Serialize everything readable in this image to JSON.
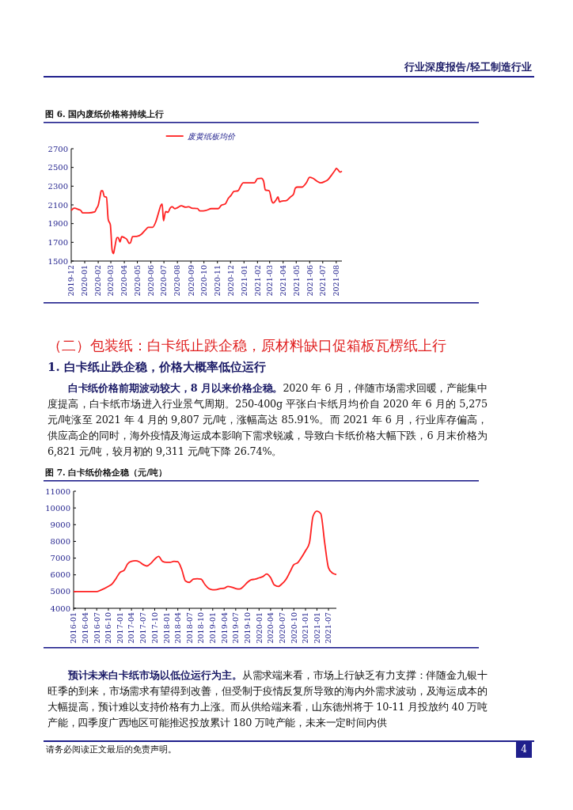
{
  "chart_data": [
    {
      "type": "line",
      "title": "图 6. 国内废纸价格将持续上行",
      "annotations": [
        "行业深度报告/轻工制造行业",
        "（二）包装纸：白卡纸止跌企稳，原材料缺口促箱板瓦楞纸上行",
        "1. 白卡纸止跌企稳，价格大概率低位运行",
        "白卡纸价格前期波动较大，8 月以来价格企稳。",
        "2020 年 6 月，伴随市场需求回暖，产能集中度提高，白卡纸市场进入行业景气周期。250-400g 平张白卡纸月均价自 2020 年 6 月的 5,275 元/吨涨至 2021 年 4 月的 9,807 元/吨，涨幅高达 85.91%。而 2021 年 6 月，行业库存偏高，供应高企的同时，海外疫情及海运成本影响下需求锐减，导致白卡纸价格大幅下跌，6 月末价格为 6,821 元/吨，较月初的 9,311 元/吨下降 26.74%。"
      ],
      "x": [
        "2019-12-01",
        "2019-12-08",
        "2019-12-18",
        "2019-12-23",
        "2019-12-27",
        "2020-01-10",
        "2020-01-24",
        "2020-01-28",
        "2020-02-01",
        "2020-02-05",
        "2020-02-08",
        "2020-02-11",
        "2020-02-15",
        "2020-02-20",
        "2020-02-24",
        "2020-02-29",
        "2020-03-01",
        "2020-03-04",
        "2020-03-07",
        "2020-03-10",
        "2020-03-15",
        "2020-03-18",
        "2020-03-22",
        "2020-03-26",
        "2020-04-01",
        "2020-04-07",
        "2020-04-12",
        "2020-04-15",
        "2020-04-20",
        "2020-05-01",
        "2020-05-10",
        "2020-05-20",
        "2020-05-26",
        "2020-06-05",
        "2020-06-12",
        "2020-06-18",
        "2020-06-24",
        "2020-06-27",
        "2020-06-30",
        "2020-07-01",
        "2020-07-05",
        "2020-07-10",
        "2020-07-16",
        "2020-07-20",
        "2020-07-26",
        "2020-08-01",
        "2020-08-10",
        "2020-08-20",
        "2020-08-27",
        "2020-09-03",
        "2020-09-16",
        "2020-09-22",
        "2020-10-05",
        "2020-10-18",
        "2020-11-03",
        "2020-11-10",
        "2020-11-19",
        "2020-11-26",
        "2020-12-02",
        "2020-12-09",
        "2020-12-18",
        "2020-12-25",
        "2020-12-30",
        "2021-01-12",
        "2021-01-25",
        "2021-02-01",
        "2021-02-10",
        "2021-02-15",
        "2021-02-19",
        "2021-02-28",
        "2021-03-06",
        "2021-03-09",
        "2021-03-16",
        "2021-03-20",
        "2021-03-24",
        "2021-03-28",
        "2021-04-08",
        "2021-04-18",
        "2021-04-25",
        "2021-04-29",
        "2021-05-04",
        "2021-05-14",
        "2021-05-24",
        "2021-06-01",
        "2021-06-08",
        "2021-06-19",
        "2021-06-26",
        "2021-07-06",
        "2021-07-13",
        "2021-07-23",
        "2021-07-30",
        "2021-08-01",
        "2021-08-05",
        "2021-08-10",
        "2021-08-14"
      ],
      "series": [
        {
          "name": "废黄纸板均价",
          "color": "#ff2020",
          "values": [
            2040,
            2065,
            2050,
            2040,
            2015,
            2015,
            2025,
            2060,
            2095,
            2185,
            2250,
            2250,
            2190,
            2180,
            1945,
            1885,
            1825,
            1615,
            1580,
            1645,
            1750,
            1750,
            1705,
            1760,
            1750,
            1730,
            1690,
            1695,
            1760,
            1765,
            1785,
            1835,
            1860,
            1860,
            1915,
            2005,
            2095,
            2110,
            1930,
            1945,
            2030,
            2020,
            2070,
            2080,
            2060,
            2070,
            2090,
            2075,
            2080,
            2065,
            2060,
            2035,
            2040,
            2060,
            2060,
            2095,
            2110,
            2170,
            2200,
            2245,
            2250,
            2305,
            2335,
            2335,
            2335,
            2380,
            2385,
            2355,
            2260,
            2250,
            2140,
            2120,
            2155,
            2185,
            2130,
            2140,
            2145,
            2185,
            2215,
            2280,
            2290,
            2290,
            2335,
            2395,
            2385,
            2350,
            2335,
            2350,
            2370,
            2430,
            2475,
            2490,
            2475,
            2450,
            2460
          ]
        }
      ],
      "xlim": [
        "2019-12-01",
        "2021-08-14"
      ],
      "xticks": [
        "2019-12",
        "2020-01",
        "2020-02",
        "2020-03",
        "2020-04",
        "2020-05",
        "2020-06",
        "2020-07",
        "2020-08",
        "2020-09",
        "2020-10",
        "2020-11",
        "2020-12",
        "2021-01",
        "2021-02",
        "2021-03",
        "2021-04",
        "2021-05",
        "2021-06",
        "2021-07",
        "2021-08"
      ],
      "ylim": [
        1500,
        2700
      ],
      "yticks": [
        1500,
        1700,
        1900,
        2100,
        2300,
        2500,
        2700
      ],
      "legend": "top",
      "grid": false
    },
    {
      "type": "line",
      "title": "图 7. 白卡纸价格企稳（元/吨）",
      "annotations": [
        "预计未来白卡纸市场以低位运行为主。",
        "从需求端来看，市场上行缺乏有力支撑：伴随金九银十旺季的到来，市场需求有望得到改善，但受制于疫情反复所导致的海内外需求波动，及海运成本的大幅提高，预计难以支持价格有力上涨。而从供给端来看，山东德州将于 10-11 月投放约 40 万吨产能，四季度广西地区可能推迟投放累计 180 万吨产能，未来一定时间内供",
        "请务必阅读正文最后的免责声明。",
        "4"
      ],
      "x": [
        "2016-01",
        "2016-07",
        "2016-08",
        "2016-10",
        "2016-11",
        "2016-12",
        "2017-01",
        "2017-02",
        "2017-03",
        "2017-04",
        "2017-05",
        "2017-06",
        "2017-07",
        "2017-08",
        "2017-09",
        "2017-10",
        "2017-11",
        "2017-12",
        "2018-01",
        "2018-02",
        "2018-03",
        "2018-04",
        "2018-05",
        "2018-06",
        "2018-07",
        "2018-08",
        "2018-09",
        "2018-10",
        "2018-11",
        "2018-12",
        "2019-01",
        "2019-02",
        "2019-03",
        "2019-04",
        "2019-05",
        "2019-06",
        "2019-07",
        "2019-08",
        "2019-09",
        "2019-10",
        "2019-11",
        "2019-12",
        "2020-01",
        "2020-02",
        "2020-03",
        "2020-04",
        "2020-05",
        "2020-06",
        "2020-07",
        "2020-08",
        "2020-09",
        "2020-10",
        "2020-11",
        "2020-12",
        "2021-01",
        "2021-02",
        "2021-03",
        "2021-04",
        "2021-05",
        "2021-06",
        "2021-07",
        "2021-08",
        "2021-09"
      ],
      "series": [
        {
          "color": "#ff2020",
          "values": [
            5000,
            5000,
            5080,
            5310,
            5470,
            5790,
            6150,
            6260,
            6650,
            6810,
            6840,
            6780,
            6620,
            6530,
            6690,
            6940,
            7100,
            6810,
            6750,
            6750,
            6810,
            6780,
            6340,
            5630,
            5550,
            5740,
            5770,
            5740,
            5420,
            5180,
            5110,
            5120,
            5180,
            5200,
            5310,
            5260,
            5180,
            5150,
            5310,
            5550,
            5710,
            5740,
            5820,
            5900,
            6050,
            5830,
            5390,
            5310,
            5470,
            5740,
            6180,
            6610,
            6730,
            7050,
            7440,
            7920,
            9500,
            9810,
            9660,
            7920,
            6420,
            6100,
            6020
          ]
        }
      ],
      "xlim": [
        "2016-01",
        "2021-09"
      ],
      "xticks": [
        "2016-01",
        "2016-04",
        "2016-07",
        "2016-10",
        "2017-01",
        "2017-04",
        "2017-07",
        "2017-10",
        "2018-01",
        "2018-04",
        "2018-07",
        "2018-10",
        "2019-01",
        "2019-04",
        "2019-07",
        "2019-10",
        "2020-01",
        "2020-04",
        "2020-07",
        "2020-10",
        "2021-01",
        {
          "value": "2021-04",
          "label": "2021-01"
        },
        "2021-07"
      ],
      "ylim": [
        4000,
        11000
      ],
      "yticks": [
        4000,
        5000,
        6000,
        7000,
        8000,
        9000,
        10000,
        11000
      ],
      "legend": false,
      "grid": false
    }
  ]
}
